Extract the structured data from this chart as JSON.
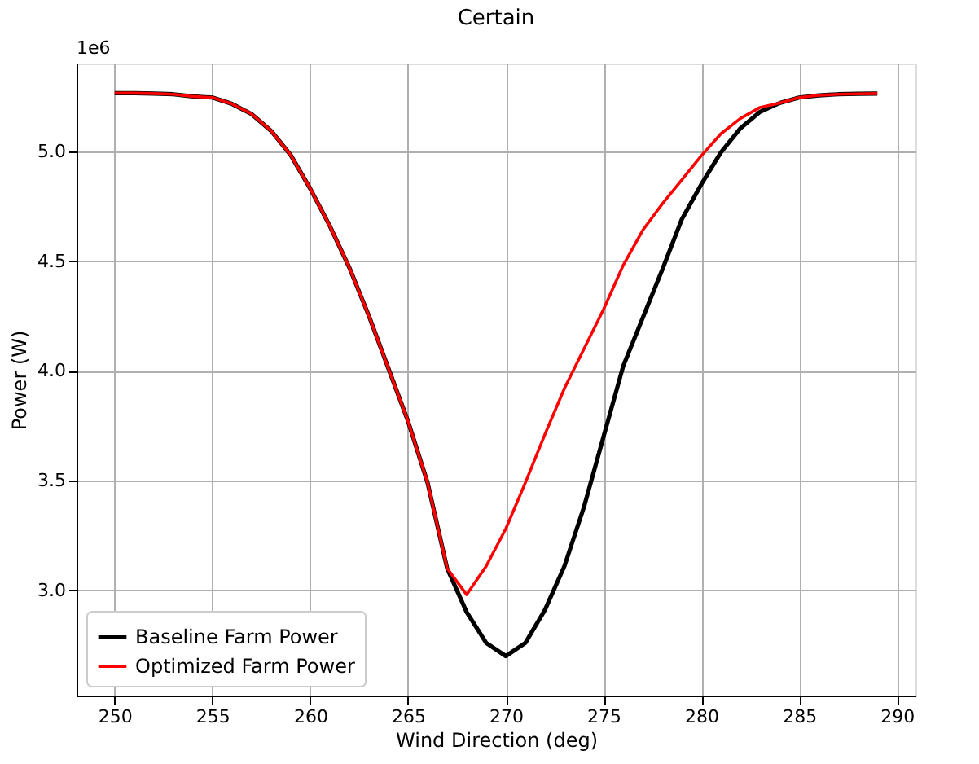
{
  "chart_data": {
    "type": "line",
    "title": "Certain",
    "xlabel": "Wind Direction (deg)",
    "ylabel": "Power (W)",
    "annotations": [
      "1e6"
    ],
    "x": [
      250,
      251,
      252,
      253,
      254,
      255,
      256,
      257,
      258,
      259,
      260,
      261,
      262,
      263,
      264,
      265,
      266,
      267,
      268,
      269,
      270,
      271,
      272,
      273,
      274,
      275,
      276,
      277,
      278,
      279,
      280,
      281,
      282,
      283,
      284,
      285,
      286,
      287,
      288,
      289
    ],
    "series": [
      {
        "name": "Baseline Farm Power",
        "color": "#000000",
        "values": [
          5.265,
          5.265,
          5.263,
          5.26,
          5.25,
          5.245,
          5.216,
          5.17,
          5.093,
          4.983,
          4.83,
          4.66,
          4.47,
          4.25,
          4.01,
          3.77,
          3.49,
          3.1,
          2.9,
          2.76,
          2.7,
          2.76,
          2.91,
          3.11,
          3.38,
          3.7,
          4.02,
          4.24,
          4.46,
          4.69,
          4.85,
          4.995,
          5.105,
          5.18,
          5.22,
          5.245,
          5.255,
          5.26,
          5.262,
          5.263
        ]
      },
      {
        "name": "Optimized Farm Power",
        "color": "#ff0000",
        "values": [
          5.265,
          5.265,
          5.263,
          5.26,
          5.25,
          5.245,
          5.216,
          5.17,
          5.093,
          4.983,
          4.83,
          4.66,
          4.47,
          4.25,
          4.01,
          3.77,
          3.49,
          3.1,
          2.98,
          3.11,
          3.28,
          3.49,
          3.71,
          3.92,
          4.1,
          4.28,
          4.48,
          4.64,
          4.76,
          4.87,
          4.98,
          5.08,
          5.15,
          5.2,
          5.22,
          5.245,
          5.255,
          5.26,
          5.262,
          5.263
        ]
      }
    ],
    "xlim": [
      248.05,
      290.95
    ],
    "xticks": [
      250,
      255,
      260,
      265,
      270,
      275,
      280,
      285,
      290
    ],
    "ylim": [
      2.52,
      5.4
    ],
    "yticks": [
      {
        "value": 3,
        "label": "3.0"
      },
      {
        "value": 3.5,
        "label": "3.5"
      },
      {
        "value": 4,
        "label": "4.0"
      },
      {
        "value": 4.5,
        "label": "4.5"
      },
      {
        "value": 5,
        "label": "5.0"
      }
    ],
    "grid": true,
    "legend": "bottom left",
    "line_style": "solid",
    "marker": "none"
  }
}
